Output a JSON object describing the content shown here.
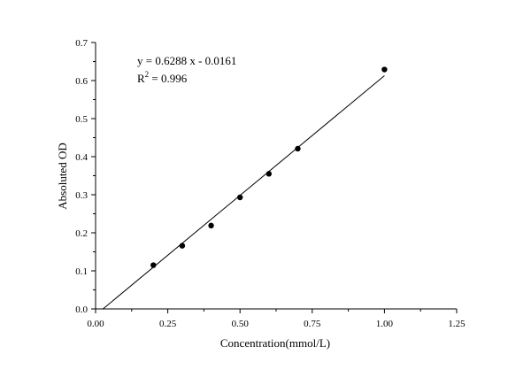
{
  "chart_data": {
    "type": "scatter",
    "xlabel": "Concentration(mmol/L)",
    "ylabel": "Absoluted OD",
    "xlim": [
      0.0,
      1.25
    ],
    "ylim": [
      0.0,
      0.7
    ],
    "x_ticks": [
      0.0,
      0.25,
      0.5,
      0.75,
      1.0,
      1.25
    ],
    "x_tick_labels": [
      "0.00",
      "0.25",
      "0.50",
      "0.75",
      "1.00",
      "1.25"
    ],
    "y_ticks": [
      0.0,
      0.1,
      0.2,
      0.3,
      0.4,
      0.5,
      0.6,
      0.7
    ],
    "y_tick_labels": [
      "0.0",
      "0.1",
      "0.2",
      "0.3",
      "0.4",
      "0.5",
      "0.6",
      "0.7"
    ],
    "grid": false,
    "series": [
      {
        "x": [
          0.2,
          0.3,
          0.4,
          0.5,
          0.6,
          0.7,
          1.0
        ],
        "y": [
          0.115,
          0.166,
          0.219,
          0.293,
          0.355,
          0.421,
          0.629
        ],
        "color": "#000000"
      }
    ],
    "fit_line": {
      "slope": 0.6288,
      "intercept": -0.0161,
      "x_range": [
        0.0256,
        1.0
      ],
      "color": "#000000"
    },
    "annotations": {
      "equation": "y = 0.6288 x - 0.0161",
      "r2_prefix": "R",
      "r2_superscript": "2",
      "r2_value": " = 0.996"
    }
  }
}
